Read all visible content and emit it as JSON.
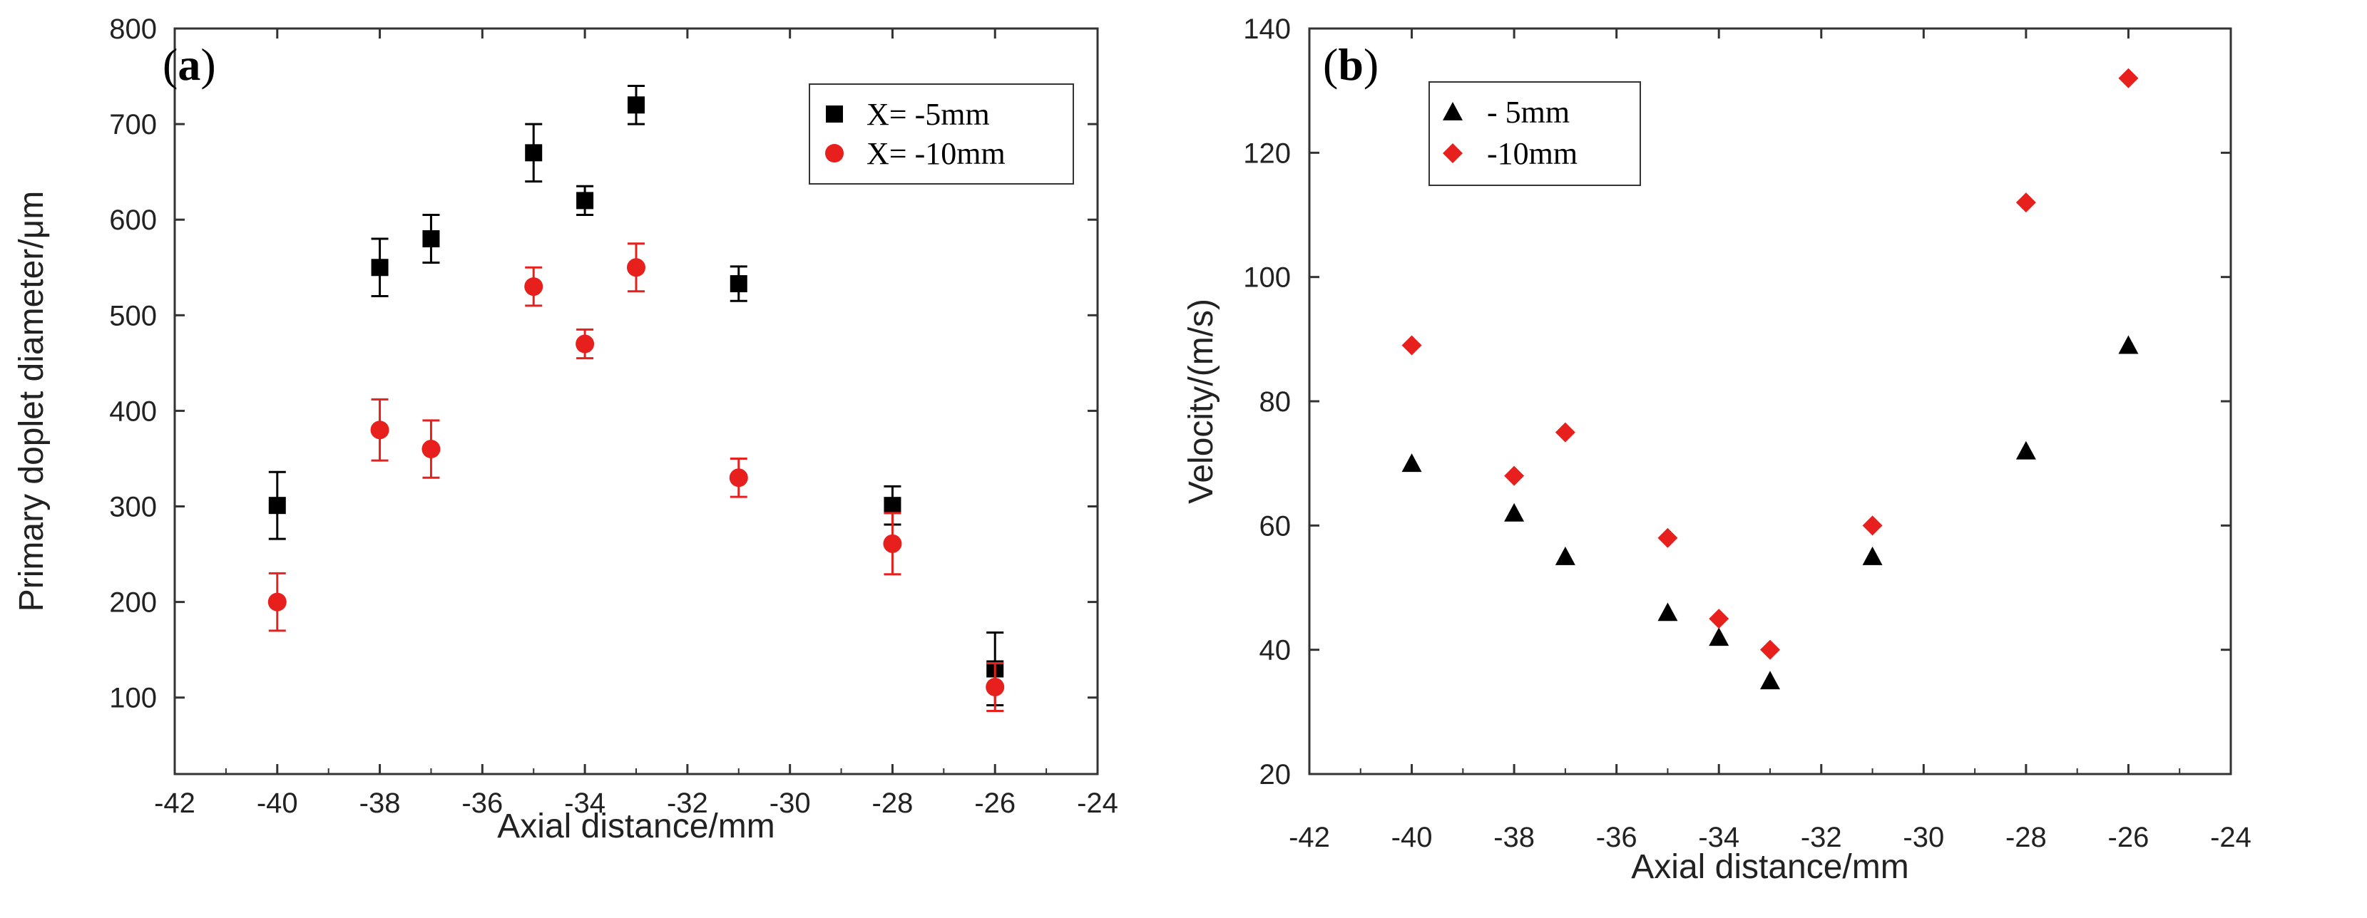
{
  "colors": {
    "black": "#000000",
    "red": "#e8201d",
    "redErr": "#e8201d"
  },
  "chart_data": [
    {
      "type": "scatter",
      "panel": "(a)",
      "xlabel": "Axial distance/mm",
      "ylabel": "Primary doplet diameter/μm",
      "xlim": [
        -42,
        -24
      ],
      "ylim": [
        20,
        800
      ],
      "xticks": [
        -42,
        -40,
        -38,
        -36,
        -34,
        -32,
        -30,
        -28,
        -26,
        -24
      ],
      "yticks": [
        100,
        200,
        300,
        400,
        500,
        600,
        700,
        800
      ],
      "legend_position": "top-right",
      "series": [
        {
          "name": "X= -5mm",
          "marker": "square",
          "color": "#000000",
          "x": [
            -40,
            -38,
            -37,
            -35,
            -34,
            -33,
            -31,
            -28,
            -26
          ],
          "y": [
            301,
            550,
            580,
            670,
            620,
            720,
            533,
            301,
            130
          ],
          "err": [
            35,
            30,
            25,
            30,
            15,
            20,
            18,
            20,
            38
          ]
        },
        {
          "name": "X= -10mm",
          "marker": "circle",
          "color": "#e8201d",
          "x": [
            -40,
            -38,
            -37,
            -35,
            -34,
            -33,
            -31,
            -28,
            -26
          ],
          "y": [
            200,
            380,
            360,
            530,
            470,
            550,
            330,
            261,
            111
          ],
          "err": [
            30,
            32,
            30,
            20,
            15,
            25,
            20,
            32,
            25
          ]
        }
      ]
    },
    {
      "type": "scatter",
      "panel": "(b)",
      "xlabel": "Axial distance/mm",
      "ylabel": "Velocity/(m/s)",
      "xlim": [
        -42,
        -24
      ],
      "ylim": [
        20,
        140
      ],
      "xticks": [
        -42,
        -40,
        -38,
        -36,
        -34,
        -32,
        -30,
        -28,
        -26,
        -24
      ],
      "yticks": [
        20,
        40,
        60,
        80,
        100,
        120,
        140
      ],
      "legend_position": "top-left",
      "series": [
        {
          "name": "- 5mm",
          "marker": "triangle",
          "color": "#000000",
          "x": [
            -40,
            -38,
            -37,
            -35,
            -34,
            -33,
            -31,
            -28,
            -26
          ],
          "y": [
            70,
            62,
            55,
            46,
            42,
            35,
            55,
            72,
            89
          ]
        },
        {
          "name": "-10mm",
          "marker": "diamond",
          "color": "#e8201d",
          "x": [
            -40,
            -38,
            -37,
            -35,
            -34,
            -33,
            -31,
            -28,
            -26
          ],
          "y": [
            89,
            68,
            75,
            58,
            45,
            40,
            60,
            112,
            132
          ]
        }
      ]
    }
  ]
}
